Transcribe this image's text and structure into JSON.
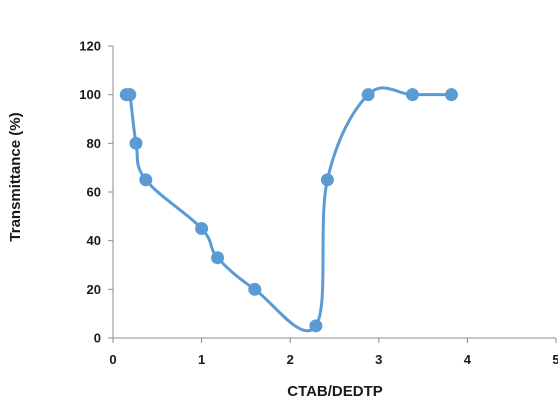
{
  "chart_data": {
    "type": "scatter",
    "title": "",
    "xlabel": "CTAB/DEDTP",
    "ylabel": "Transmittance (%)",
    "xlim": [
      0,
      5
    ],
    "ylim": [
      0,
      120
    ],
    "x_ticks": [
      "0",
      "1",
      "2",
      "3",
      "4",
      "5"
    ],
    "y_ticks": [
      "0",
      "20",
      "40",
      "60",
      "80",
      "100",
      "120"
    ],
    "grid": false,
    "legend": "none",
    "smoothed_line": true,
    "color": "#5b9bd5",
    "series": [
      {
        "x": [
          0.15,
          0.19,
          0.26,
          0.37,
          1.0,
          1.18,
          1.6,
          2.29,
          2.42,
          2.88,
          3.38,
          3.82
        ],
        "y": [
          100,
          100,
          80,
          65,
          45,
          33,
          20,
          5,
          65,
          100,
          100,
          100
        ]
      }
    ]
  }
}
